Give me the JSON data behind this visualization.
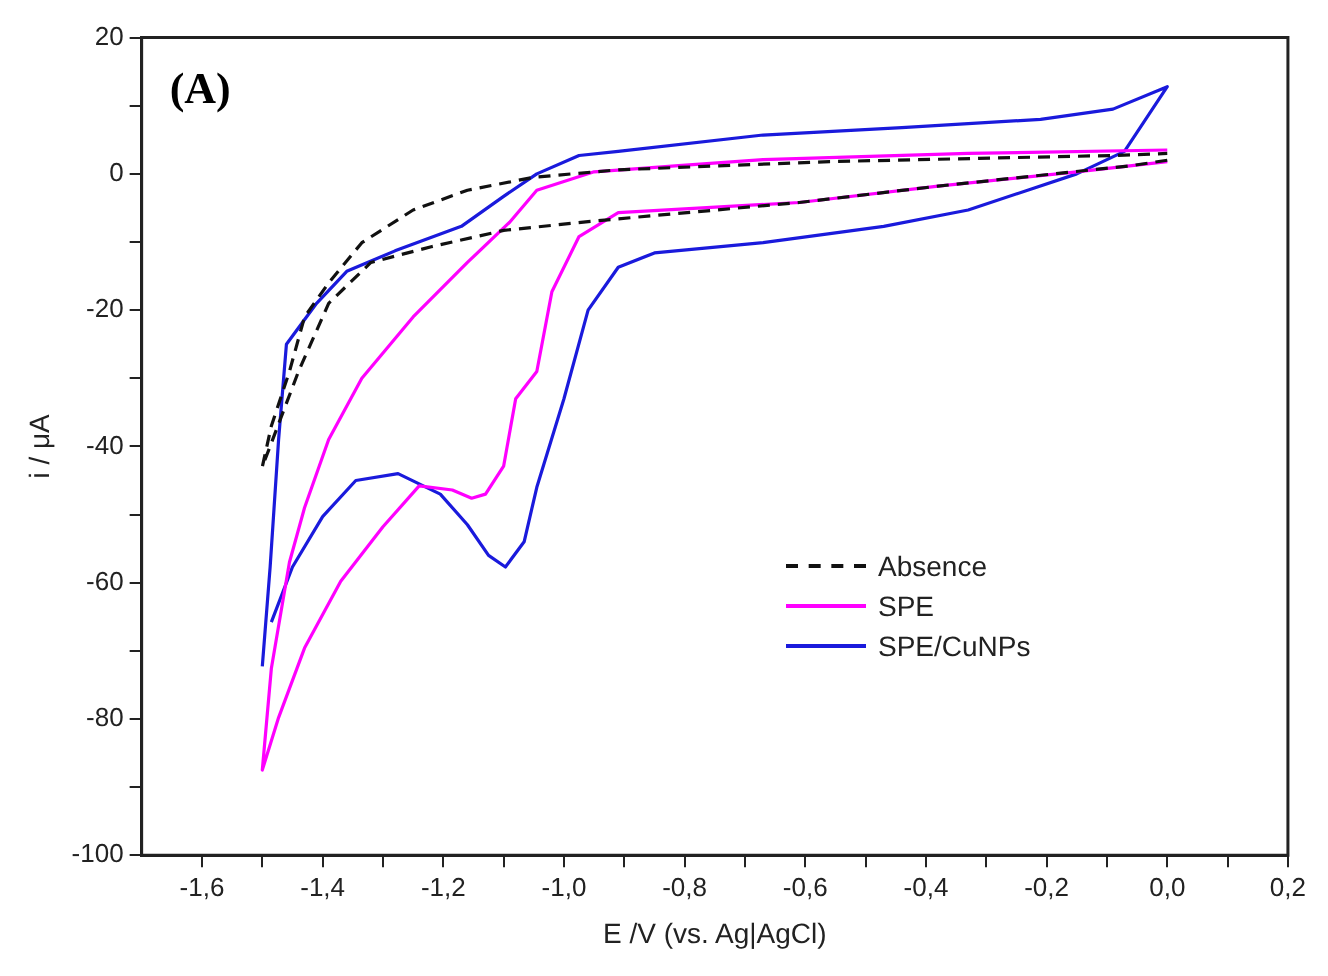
{
  "chart_data": {
    "type": "line",
    "xlabel": "E /V (vs. Ag|AgCl)",
    "ylabel": "i / μA",
    "annotations": [
      "(A)"
    ],
    "xlim": [
      -1.7,
      0.2
    ],
    "ylim": [
      -100,
      20
    ],
    "xticks": [
      {
        "value": -1.6,
        "label": "-1,6"
      },
      {
        "value": -1.5,
        "label": null
      },
      {
        "value": -1.4,
        "label": "-1,4"
      },
      {
        "value": -1.3,
        "label": null
      },
      {
        "value": -1.2,
        "label": "-1,2"
      },
      {
        "value": -1.1,
        "label": null
      },
      {
        "value": -1.0,
        "label": "-1,0"
      },
      {
        "value": -0.9,
        "label": null
      },
      {
        "value": -0.8,
        "label": "-0,8"
      },
      {
        "value": -0.7,
        "label": null
      },
      {
        "value": -0.6,
        "label": "-0,6"
      },
      {
        "value": -0.5,
        "label": null
      },
      {
        "value": -0.4,
        "label": "-0,4"
      },
      {
        "value": -0.3,
        "label": null
      },
      {
        "value": -0.2,
        "label": "-0,2"
      },
      {
        "value": -0.1,
        "label": null
      },
      {
        "value": 0.0,
        "label": "0,0"
      },
      {
        "value": 0.1,
        "label": null
      },
      {
        "value": 0.2,
        "label": "0,2"
      }
    ],
    "yticks": [
      20,
      {
        "value": 10,
        "label": null
      },
      0,
      {
        "value": -10,
        "label": null
      },
      -20,
      {
        "value": -30,
        "label": null
      },
      -40,
      {
        "value": -50,
        "label": null
      },
      -60,
      {
        "value": -70,
        "label": null
      },
      -80,
      {
        "value": -90,
        "label": null
      },
      -100
    ],
    "grid": false,
    "legend": "right",
    "marker": "none",
    "series": [
      {
        "name": "Absence",
        "color": "#111111",
        "line_style": "dashed",
        "x": [
          0,
          -0.06,
          -0.38,
          -0.61,
          -0.96,
          -1.1,
          -1.22,
          -1.32,
          -1.39,
          -1.44,
          -1.47,
          -1.5,
          -1.485,
          -1.455,
          -1.43,
          -1.39,
          -1.335,
          -1.25,
          -1.16,
          -1.05,
          -0.91,
          -0.56,
          -0.09,
          0
        ],
        "values": [
          2,
          1.2,
          -1.8,
          -4.2,
          -7,
          -8.3,
          -10.7,
          -13,
          -19,
          -29,
          -36,
          -43,
          -37,
          -29,
          -21,
          -16,
          -10.1,
          -5.3,
          -2.4,
          -0.5,
          0.6,
          1.8,
          2.7,
          3
        ]
      },
      {
        "name": "SPE",
        "color": "#ff00ff",
        "line_style": "solid",
        "x": [
          0,
          -0.15,
          -0.38,
          -0.61,
          -0.91,
          -0.975,
          -1.02,
          -1.045,
          -1.08,
          -1.1,
          -1.13,
          -1.153,
          -1.185,
          -1.24,
          -1.3,
          -1.37,
          -1.43,
          -1.473,
          -1.5,
          -1.485,
          -1.455,
          -1.43,
          -1.39,
          -1.335,
          -1.25,
          -1.16,
          -1.09,
          -1.045,
          -0.95,
          -0.81,
          -0.67,
          -0.33,
          0
        ],
        "values": [
          1.8,
          0.3,
          -1.8,
          -4.2,
          -5.7,
          -9.2,
          -17.3,
          -29,
          -33,
          -42.9,
          -47,
          -47.6,
          -46.4,
          -45.8,
          -51.8,
          -59.8,
          -69.6,
          -79.8,
          -87.5,
          -72.6,
          -57,
          -49,
          -39,
          -30,
          -21,
          -13,
          -7.1,
          -2.4,
          0.3,
          1.2,
          2.1,
          3,
          3.5
        ]
      },
      {
        "name": "SPE/CuNPs",
        "color": "#1a1adc",
        "line_style": "solid",
        "x": [
          -1.5,
          -1.487,
          -1.473,
          -1.46,
          -1.41,
          -1.36,
          -1.28,
          -1.17,
          -1.1,
          -1.045,
          -0.975,
          -0.91,
          -0.67,
          -0.44,
          -0.21,
          -0.09,
          0,
          -0.071,
          -0.15,
          -0.33,
          -0.47,
          -0.67,
          -0.85,
          -0.91,
          -0.96,
          -1.0,
          -1.045,
          -1.066,
          -1.097,
          -1.125,
          -1.16,
          -1.205,
          -1.275,
          -1.345,
          -1.4,
          -1.45,
          -1.485
        ],
        "values": [
          -72.3,
          -57.7,
          -39,
          -25,
          -19,
          -14.3,
          -11.3,
          -7.7,
          -3.3,
          0,
          2.7,
          3.3,
          5.7,
          6.8,
          8,
          9.5,
          12.8,
          3.3,
          0,
          -5.3,
          -7.7,
          -10.1,
          -11.6,
          -13.7,
          -20,
          -33,
          -46,
          -54,
          -57.7,
          -56,
          -51.5,
          -47,
          -44,
          -45,
          -50.3,
          -57.7,
          -65.8
        ]
      }
    ]
  }
}
